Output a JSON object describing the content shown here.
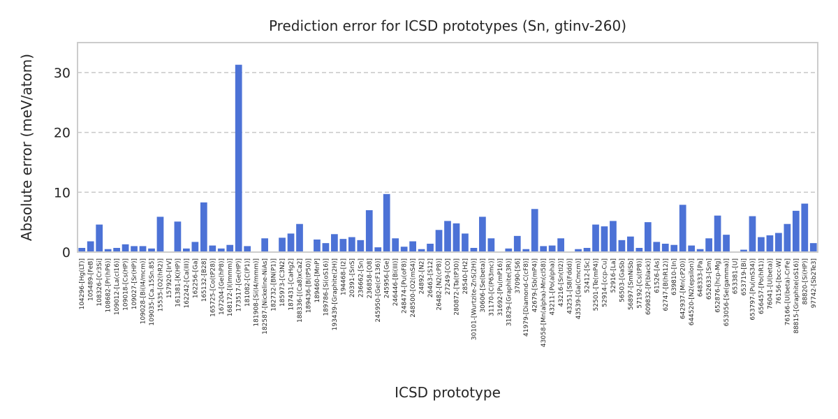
{
  "chart_data": {
    "type": "bar",
    "title": "Prediction error for ICSD prototypes (Sn, gtinv-260)",
    "xlabel": "ICSD prototype",
    "ylabel": "Absolute error (meV/atom)",
    "ylim": [
      0,
      35
    ],
    "yticks": [
      0,
      10,
      20,
      30
    ],
    "grid": "horizontal dashed",
    "bar_color": "#4c72d6",
    "categories": [
      "104296-[Hg(LT)]",
      "105489-[FeB]",
      "108326-[Cr3Si]",
      "108682-[Pr(hP6)]",
      "109012-[La(cI16)]",
      "109018-[Cs(HP)]",
      "109027-[Sr(HP)]",
      "109028-[Bi(I4/mcm)]",
      "109035-[Ca.15Sn.85]",
      "15535-[O2(hR2)]",
      "157920-[IrV]",
      "161381-[K(HP)]",
      "162242-[Ca(III)]",
      "162256-[Ga]",
      "165132-[B28]",
      "165725-[Co(tP28)]",
      "167204-[Ge(hP8)]",
      "168172-[I(Immm)]",
      "173517-[Ge(HP)]",
      "181082-[C(P1)]",
      "181908-[Si(I4/mmm)]",
      "182587-[Nickeline-NiAs]",
      "182732-[BN(P1)]",
      "185973-[C3N2]",
      "187431-[CaHg2]",
      "188336-[(Ca8)xCa2]",
      "189436-[B(tP50)]",
      "189460-[MnP]",
      "189786-[Si(oS16)]",
      "193439-[Graphite(2H)]",
      "194468-[I2]",
      "20391-[SnS]",
      "236662-[Sn]",
      "236858-[O8]",
      "245950-[Ge(cF136)]",
      "245956-[Ge]",
      "246446-[Bi(III)]",
      "248474-[Pu(oF8)]",
      "248500-[O2(mS4)]",
      "24892-[N2]",
      "26463-[S12]",
      "26482-[N2(cP8)]",
      "27249-[CO]",
      "280872-[Ta(tP30)]",
      "28540-[H2]",
      "30101-[Wurtzite-ZnS(2H)]",
      "30606-[Se(beta)]",
      "31170-[C(P63mc)]",
      "31692-[Pu(mP16)]",
      "31829-[Graphite(3R)]",
      "37090-[S6]",
      "41979-[Diamond-C(cF8)]",
      "42679-[Sb(mP4)]",
      "43058-[Mn(alpha)-Mn(cI58)]",
      "43211-[Po(alpha)]",
      "43216-[Sn(tI2)]",
      "43251-[S8(Fddd)]",
      "43539-[Ga(Cmcm)]",
      "52412-[Sc]",
      "52501-[Te(mP4)]",
      "52914-[ccp-Cu]",
      "52916-[La]",
      "56503-[GaSb]",
      "56897-[SmNiSb]",
      "57192-[Cs(tP8)]",
      "609832-[P(black)]",
      "61526-[As]",
      "62747-[B(hR12)]",
      "639810-[In]",
      "642937-[Mn(cP20)]",
      "644520-[N2(epsilon)]",
      "648333-[Pa]",
      "652633-[Sm]",
      "652876-[hcp-Mg]",
      "653056-[Se(gamma)]",
      "653381-[U]",
      "653719-[Bi]",
      "653797-[Pu(mS34)]",
      "656457-[Po(hR1)]",
      "76041-[U(beta)]",
      "76156-[bcc-W]",
      "76166-[U(beta)-CrFe]",
      "88815-[Graphite(oS16)]",
      "88820-[Si(HP)]",
      "97742-[Sb2Te3]"
    ],
    "values": [
      0.7,
      1.8,
      4.6,
      0.5,
      0.7,
      1.3,
      1.0,
      1.0,
      0.6,
      5.9,
      0.0,
      5.1,
      0.6,
      1.7,
      8.3,
      1.1,
      0.6,
      1.2,
      31.3,
      1.0,
      0.0,
      2.3,
      0.0,
      2.4,
      3.1,
      4.7,
      0.0,
      2.1,
      1.5,
      3.0,
      2.2,
      2.5,
      2.0,
      7.0,
      0.8,
      9.7,
      2.3,
      0.9,
      1.8,
      0.5,
      1.4,
      3.7,
      5.2,
      4.8,
      3.1,
      0.7,
      5.9,
      2.3,
      0.0,
      0.6,
      2.7,
      0.5,
      7.2,
      1.0,
      1.1,
      2.3,
      0.0,
      0.5,
      0.7,
      4.6,
      4.3,
      5.2,
      2.0,
      2.6,
      0.7,
      5.0,
      1.7,
      1.4,
      1.2,
      7.9,
      1.1,
      0.5,
      2.3,
      6.1,
      2.9,
      0.0,
      0.4,
      6.0,
      2.5,
      2.8,
      3.2,
      4.7,
      6.9,
      8.1,
      1.5
    ]
  }
}
